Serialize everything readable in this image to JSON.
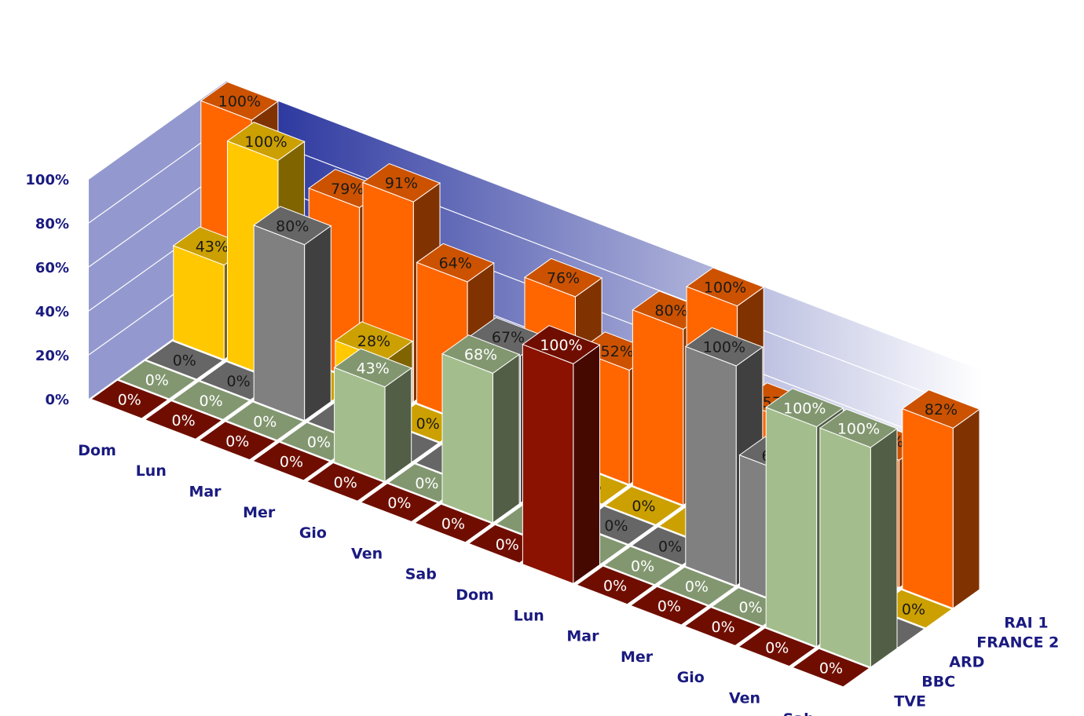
{
  "chart_data": {
    "type": "bar",
    "style": "3d-grouped-depth",
    "categories": [
      "Dom",
      "Lun",
      "Mar",
      "Mer",
      "Gio",
      "Ven",
      "Sab",
      "Dom",
      "Lun",
      "Mar",
      "Mer",
      "Gio",
      "Ven",
      "Sab"
    ],
    "series": [
      {
        "name": "TVE",
        "color": "#8b1200",
        "values": [
          0,
          0,
          0,
          0,
          0,
          0,
          0,
          0,
          100,
          0,
          0,
          0,
          0,
          0
        ]
      },
      {
        "name": "BBC",
        "color": "#a3bd8c",
        "values": [
          0,
          0,
          0,
          0,
          43,
          0,
          68,
          0,
          0,
          0,
          0,
          0,
          100,
          100
        ]
      },
      {
        "name": "ARD",
        "color": "#808080",
        "values": [
          0,
          0,
          80,
          0,
          0,
          0,
          67,
          0,
          0,
          0,
          100,
          60,
          0,
          0
        ]
      },
      {
        "name": "FRANCE 2",
        "color": "#ffc800",
        "values": [
          43,
          100,
          0,
          28,
          0,
          0,
          0,
          0,
          0,
          0,
          0,
          0,
          0,
          0
        ]
      },
      {
        "name": "RAI 1",
        "color": "#ff6600",
        "values": [
          100,
          0,
          79,
          91,
          64,
          0,
          76,
          52,
          80,
          100,
          57,
          50,
          58,
          82
        ]
      }
    ],
    "ylim": [
      0,
      100
    ],
    "yticks": [
      "0%",
      "20%",
      "40%",
      "60%",
      "80%",
      "100%"
    ],
    "value_suffix": "%",
    "grid": true,
    "legend": "depth-axis-right",
    "wall_gradient": [
      "#1f2b99",
      "#ffffff"
    ],
    "title": "",
    "xlabel": "",
    "ylabel": ""
  }
}
